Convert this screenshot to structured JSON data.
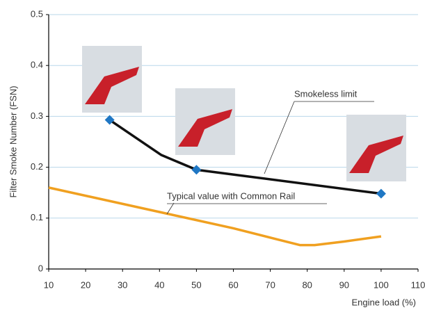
{
  "chart_data": {
    "type": "line",
    "x_label": "Engine load (%)",
    "y_label": "Filter Smoke Number (FSN)",
    "xlim": [
      10,
      110
    ],
    "xticks": [
      10,
      20,
      30,
      40,
      50,
      60,
      70,
      80,
      90,
      100,
      110
    ],
    "ylim": [
      0,
      0.5
    ],
    "yticks": [
      0,
      0.1,
      0.2,
      0.3,
      0.4,
      0.5
    ],
    "grid": true,
    "series": [
      {
        "color": "#111111",
        "x": [
          26.5,
          40.5,
          50,
          100
        ],
        "values": [
          0.293,
          0.224,
          0.195,
          0.148
        ]
      },
      {
        "color": "#1f77c4",
        "style": "markers",
        "x": [
          26.5,
          50,
          100
        ],
        "values": [
          0.293,
          0.195,
          0.148
        ]
      },
      {
        "color": "#f0a020",
        "x": [
          10,
          40,
          60,
          72,
          78,
          82,
          90,
          100
        ],
        "values": [
          0.16,
          0.112,
          0.08,
          0.058,
          0.047,
          0.047,
          0.054,
          0.064
        ]
      }
    ],
    "annotations": [
      "Smokeless limit",
      "Typical value with Common Rail"
    ]
  }
}
